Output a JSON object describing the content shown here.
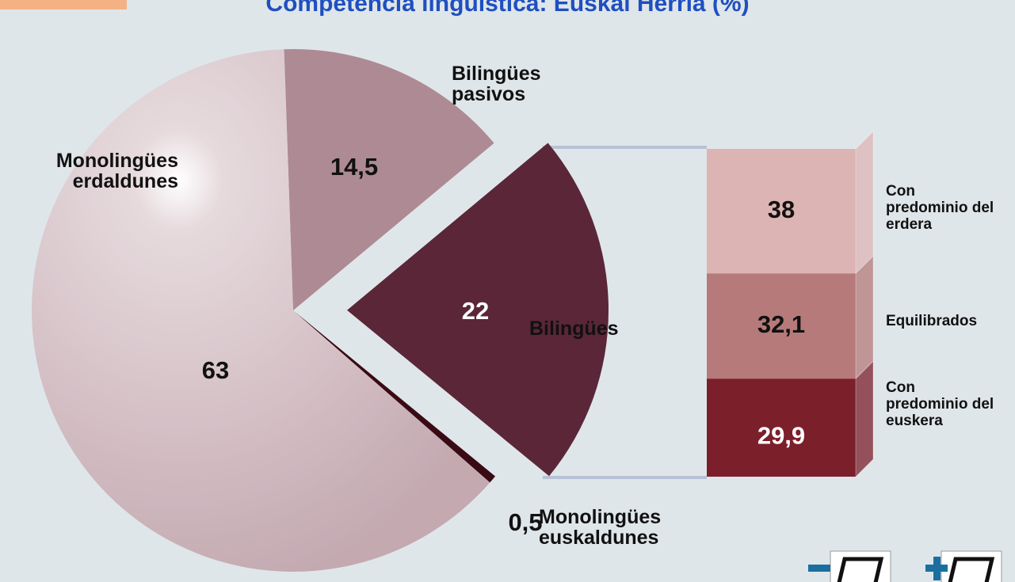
{
  "chart_data": [
    {
      "type": "pie",
      "title": "Competencia lingüística: Euskal Herria (%)",
      "categories": [
        "Bilingües pasivos",
        "Bilingües",
        "Monolingües euskaldunes",
        "Monolingües erdaldunes"
      ],
      "values": [
        14.5,
        22,
        0.5,
        63
      ],
      "value_labels": [
        "14,5",
        "22",
        "0,5",
        "63"
      ],
      "colors": [
        "#ad8a94",
        "#5a2638",
        "#3a0a14",
        "#cbb4bb"
      ],
      "exploded": "Bilingües"
    },
    {
      "type": "bar",
      "categories": [
        "Con predominio del erdera",
        "Equilibrados",
        "Con predominio del euskera"
      ],
      "values": [
        38,
        32.1,
        29.9
      ],
      "value_labels": [
        "38",
        "32,1",
        "29,9"
      ],
      "colors": [
        "#ddb4b4",
        "#b67a7a",
        "#7b1f2b"
      ]
    }
  ]
}
